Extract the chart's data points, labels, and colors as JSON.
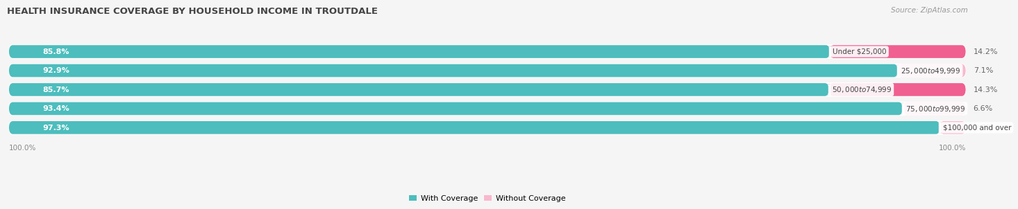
{
  "title": "HEALTH INSURANCE COVERAGE BY HOUSEHOLD INCOME IN TROUTDALE",
  "source": "Source: ZipAtlas.com",
  "categories": [
    "Under $25,000",
    "$25,000 to $49,999",
    "$50,000 to $74,999",
    "$75,000 to $99,999",
    "$100,000 and over"
  ],
  "with_coverage": [
    85.8,
    92.9,
    85.7,
    93.4,
    97.3
  ],
  "without_coverage": [
    14.2,
    7.1,
    14.3,
    6.6,
    2.7
  ],
  "color_with": "#4dbdbd",
  "color_without": "#f06090",
  "color_without_light": "#f9b8cc",
  "bar_bg_color": "#e8e8ec",
  "fig_bg": "#f5f5f5",
  "title_fontsize": 9.5,
  "source_fontsize": 7.5,
  "label_fontsize": 8,
  "cat_fontsize": 7.5,
  "tick_fontsize": 7.5,
  "legend_fontsize": 8,
  "fig_width": 14.06,
  "fig_height": 2.69,
  "bar_height": 0.68,
  "xlim_max": 100
}
